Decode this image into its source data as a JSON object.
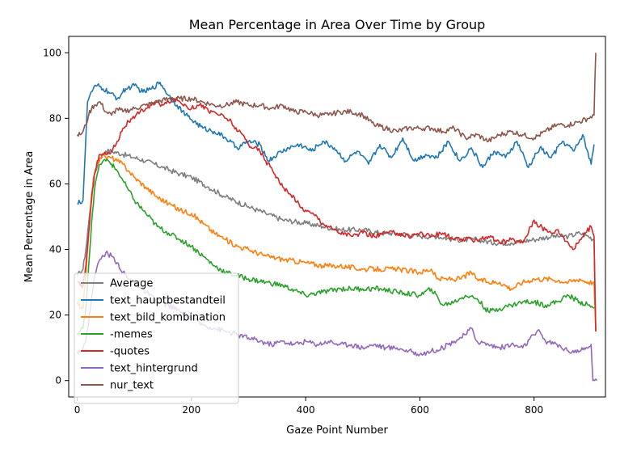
{
  "chart_data": {
    "type": "line",
    "title": "Mean Percentage in Area Over Time by Group",
    "xlabel": "Gaze Point Number",
    "ylabel": "Mean Percentage in Area",
    "xlim": [
      -15,
      925
    ],
    "ylim": [
      -5,
      105
    ],
    "xticks": [
      0,
      200,
      400,
      600,
      800
    ],
    "yticks": [
      0,
      20,
      40,
      60,
      80,
      100
    ],
    "legend_position": "lower-left",
    "grid": false,
    "series": [
      {
        "name": "Average",
        "color": "#7f7f7f",
        "x": [
          0,
          5,
          10,
          15,
          20,
          25,
          30,
          40,
          50,
          60,
          80,
          100,
          120,
          150,
          180,
          200,
          230,
          260,
          300,
          330,
          360,
          400,
          430,
          460,
          500,
          530,
          560,
          600,
          630,
          660,
          700,
          730,
          760,
          800,
          830,
          860,
          880,
          895,
          905,
          908
        ],
        "y": [
          32,
          33,
          34,
          40,
          48,
          56,
          63,
          68,
          70,
          70,
          69,
          68,
          67,
          65,
          63,
          62,
          59,
          56,
          53,
          51,
          49,
          48,
          47,
          46,
          46,
          45,
          45,
          44,
          44,
          43,
          43,
          42,
          42,
          43,
          44,
          44,
          45,
          44,
          43,
          15
        ]
      },
      {
        "name": "text_hauptbestandteil",
        "color": "#1f77b4",
        "x": [
          0,
          3,
          6,
          10,
          14,
          18,
          22,
          28,
          35,
          45,
          55,
          70,
          85,
          100,
          115,
          130,
          145,
          160,
          175,
          190,
          205,
          220,
          240,
          260,
          280,
          300,
          320,
          335,
          350,
          370,
          390,
          410,
          430,
          450,
          470,
          490,
          510,
          530,
          550,
          570,
          590,
          610,
          630,
          650,
          670,
          690,
          710,
          730,
          750,
          770,
          790,
          810,
          830,
          850,
          870,
          885,
          900,
          905
        ],
        "y": [
          54,
          55,
          54,
          55,
          70,
          85,
          87,
          89,
          90,
          89,
          88,
          86,
          89,
          90,
          88,
          89,
          91,
          87,
          84,
          81,
          79,
          77,
          76,
          74,
          71,
          73,
          72,
          67,
          69,
          71,
          72,
          70,
          73,
          71,
          67,
          70,
          66,
          72,
          68,
          74,
          67,
          69,
          68,
          73,
          67,
          71,
          65,
          70,
          68,
          73,
          65,
          71,
          68,
          73,
          70,
          75,
          66,
          72
        ]
      },
      {
        "name": "text_bild_kombination",
        "color": "#ff7f0e",
        "x": [
          0,
          5,
          10,
          15,
          20,
          25,
          30,
          35,
          40,
          45,
          50,
          60,
          70,
          80,
          90,
          100,
          120,
          140,
          160,
          180,
          200,
          220,
          240,
          260,
          280,
          300,
          330,
          360,
          400,
          430,
          460,
          500,
          530,
          560,
          600,
          620,
          630,
          650,
          670,
          690,
          700,
          720,
          740,
          760,
          780,
          800,
          830,
          860,
          880,
          895,
          905,
          908
        ],
        "y": [
          24,
          22,
          22,
          32,
          45,
          57,
          63,
          66,
          68,
          69,
          68,
          68,
          67,
          66,
          64,
          62,
          59,
          56,
          54,
          52,
          51,
          48,
          45,
          43,
          41,
          40,
          38,
          37,
          36,
          35,
          35,
          34,
          34,
          34,
          33,
          34,
          31,
          31,
          31,
          33,
          31,
          30,
          30,
          28,
          30,
          31,
          31,
          30,
          31,
          30,
          30,
          15
        ]
      },
      {
        "name": "-memes",
        "color": "#2ca02c",
        "x": [
          0,
          5,
          10,
          15,
          20,
          25,
          30,
          35,
          40,
          45,
          50,
          55,
          60,
          65,
          70,
          80,
          90,
          100,
          120,
          140,
          160,
          180,
          200,
          220,
          240,
          260,
          280,
          300,
          330,
          360,
          400,
          430,
          460,
          500,
          530,
          560,
          600,
          620,
          640,
          660,
          680,
          700,
          720,
          740,
          760,
          780,
          800,
          820,
          840,
          860,
          880,
          895,
          905
        ],
        "y": [
          14,
          15,
          16,
          22,
          35,
          48,
          58,
          63,
          66,
          67,
          67,
          67,
          66,
          65,
          64,
          61,
          58,
          55,
          51,
          47,
          45,
          43,
          41,
          38,
          35,
          33,
          32,
          31,
          30,
          29,
          26,
          27,
          28,
          28,
          28,
          27,
          26,
          28,
          23,
          24,
          26,
          25,
          21,
          22,
          23,
          24,
          24,
          23,
          24,
          26,
          24,
          23,
          22
        ]
      },
      {
        "name": "-quotes",
        "color": "#d62728",
        "x": [
          0,
          5,
          10,
          15,
          20,
          25,
          30,
          35,
          40,
          50,
          60,
          70,
          80,
          90,
          100,
          110,
          120,
          130,
          140,
          150,
          160,
          170,
          180,
          190,
          200,
          210,
          220,
          230,
          240,
          250,
          260,
          270,
          280,
          290,
          300,
          310,
          320,
          330,
          340,
          350,
          360,
          370,
          380,
          390,
          400,
          410,
          420,
          430,
          440,
          450,
          460,
          470,
          480,
          500,
          520,
          540,
          560,
          580,
          600,
          620,
          640,
          660,
          680,
          700,
          720,
          740,
          760,
          780,
          800,
          810,
          820,
          830,
          840,
          850,
          860,
          870,
          880,
          890,
          900,
          905,
          908
        ],
        "y": [
          30,
          29,
          29,
          35,
          45,
          55,
          63,
          67,
          69,
          69,
          70,
          73,
          77,
          79,
          80,
          82,
          83,
          84,
          85,
          84,
          85,
          86,
          85,
          84,
          83,
          84,
          84,
          82,
          82,
          81,
          80,
          79,
          76,
          75,
          72,
          71,
          70,
          67,
          65,
          62,
          59,
          57,
          56,
          53,
          52,
          51,
          50,
          48,
          47,
          46,
          45,
          45,
          44,
          45,
          44,
          45,
          45,
          44,
          45,
          44,
          45,
          43,
          43,
          43,
          44,
          42,
          43,
          42,
          49,
          47,
          46,
          45,
          46,
          44,
          42,
          40,
          43,
          45,
          47,
          44,
          15
        ]
      },
      {
        "name": "text_hintergrund",
        "color": "#9467bd",
        "x": [
          0,
          5,
          10,
          15,
          20,
          25,
          30,
          40,
          50,
          60,
          70,
          80,
          90,
          100,
          120,
          140,
          160,
          180,
          200,
          220,
          240,
          260,
          280,
          300,
          320,
          340,
          360,
          380,
          400,
          420,
          440,
          460,
          480,
          500,
          520,
          540,
          560,
          580,
          600,
          620,
          640,
          660,
          680,
          690,
          700,
          720,
          740,
          760,
          780,
          800,
          810,
          820,
          840,
          860,
          880,
          895,
          900,
          903,
          906,
          910
        ],
        "y": [
          9,
          9,
          10,
          12,
          18,
          25,
          32,
          37,
          39,
          38,
          36,
          33,
          31,
          30,
          27,
          24,
          23,
          21,
          19,
          17,
          16,
          15,
          14,
          13,
          12,
          11,
          12,
          11,
          12,
          11,
          12,
          11,
          11,
          10,
          11,
          10,
          10,
          9,
          8,
          9,
          10,
          12,
          14,
          16,
          12,
          11,
          10,
          11,
          10,
          14,
          15,
          12,
          11,
          9,
          9,
          10,
          11,
          0,
          0,
          0
        ]
      },
      {
        "name": "nur_text",
        "color": "#8c564b",
        "x": [
          0,
          5,
          10,
          15,
          20,
          25,
          30,
          40,
          50,
          60,
          70,
          80,
          100,
          120,
          140,
          160,
          180,
          200,
          220,
          240,
          260,
          280,
          300,
          320,
          340,
          360,
          380,
          400,
          420,
          440,
          460,
          480,
          500,
          520,
          540,
          560,
          580,
          600,
          620,
          640,
          660,
          680,
          700,
          720,
          740,
          760,
          780,
          800,
          820,
          840,
          860,
          880,
          895,
          905,
          908
        ],
        "y": [
          75,
          75,
          76,
          78,
          81,
          83,
          84,
          85,
          82,
          81,
          83,
          82,
          83,
          84,
          85,
          86,
          86,
          86,
          85,
          84,
          84,
          85,
          84,
          84,
          83,
          84,
          82,
          82,
          81,
          81,
          82,
          82,
          81,
          78,
          77,
          76,
          77,
          77,
          77,
          76,
          77,
          74,
          75,
          73,
          75,
          76,
          75,
          74,
          76,
          78,
          78,
          79,
          80,
          81,
          100
        ]
      }
    ]
  }
}
